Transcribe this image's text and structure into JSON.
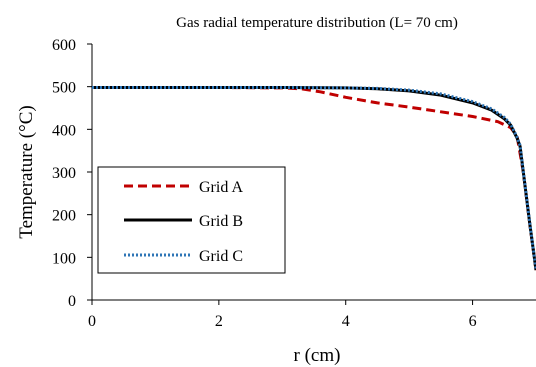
{
  "chart_data": {
    "type": "line",
    "title": "Gas radial temperature distribution (L= 70 cm)",
    "xlabel": "r (cm)",
    "ylabel": "Temperature (°C)",
    "xlim": [
      0,
      7
    ],
    "ylim": [
      0,
      600
    ],
    "xticks": [
      0,
      2,
      4,
      6
    ],
    "yticks": [
      0,
      100,
      200,
      300,
      400,
      500,
      600
    ],
    "grid": false,
    "legend_position": "bottom-left",
    "series": [
      {
        "name": "Grid A",
        "color": "#c00000",
        "style": "dashed",
        "x": [
          0,
          1,
          2,
          3,
          3.3,
          3.6,
          4.0,
          4.5,
          5.0,
          5.5,
          6.0,
          6.4,
          6.6,
          6.7,
          6.8,
          6.9,
          7.0
        ],
        "y": [
          498,
          498,
          498,
          497,
          495,
          488,
          475,
          462,
          452,
          441,
          430,
          418,
          404,
          385,
          300,
          180,
          70
        ]
      },
      {
        "name": "Grid B",
        "color": "#000000",
        "style": "solid",
        "x": [
          0,
          1,
          2,
          3,
          4,
          4.5,
          5.0,
          5.5,
          6.0,
          6.3,
          6.5,
          6.6,
          6.7,
          6.75,
          6.8,
          6.9,
          7.0
        ],
        "y": [
          498,
          498,
          498,
          498,
          497,
          495,
          490,
          480,
          462,
          445,
          425,
          410,
          380,
          360,
          300,
          180,
          70
        ]
      },
      {
        "name": "Grid C",
        "color": "#2e75b6",
        "style": "dotted",
        "x": [
          0,
          1,
          2,
          3,
          4,
          4.5,
          5.0,
          5.5,
          6.0,
          6.3,
          6.5,
          6.6,
          6.7,
          6.75,
          6.8,
          6.9,
          7.0
        ],
        "y": [
          498,
          498,
          498,
          498,
          497,
          496,
          492,
          483,
          465,
          448,
          428,
          412,
          382,
          362,
          302,
          182,
          72
        ]
      }
    ]
  }
}
